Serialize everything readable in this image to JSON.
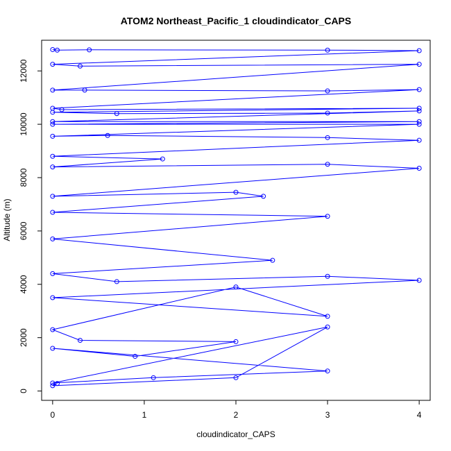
{
  "chart_data": {
    "type": "line",
    "title": "ATOM2 Northeast_Pacific_1 cloudindicator_CAPS",
    "xlabel": "cloudindicator_CAPS",
    "ylabel": "Altitude (m)",
    "xlim": [
      -0.12,
      4.12
    ],
    "ylim": [
      -350,
      13150
    ],
    "x_ticks": [
      0,
      1,
      2,
      3,
      4
    ],
    "y_ticks": [
      0,
      2000,
      4000,
      6000,
      8000,
      10000,
      12000
    ],
    "grid": false,
    "legend": "none",
    "colors": {
      "series": "#0000ff",
      "axes": "#000000",
      "background": "#ffffff"
    },
    "series": [
      {
        "x": [
          0,
          0.05,
          0.4,
          3,
          4,
          0,
          0.3,
          4,
          0,
          0.35,
          3,
          4,
          0,
          0.1,
          4,
          0,
          0.7,
          3,
          4,
          0,
          4,
          0,
          4,
          0,
          0.6,
          3,
          4,
          0,
          1.2,
          0,
          3,
          4,
          0,
          2,
          2.3,
          0,
          3,
          0,
          2.4,
          0,
          0.7,
          3,
          4,
          0,
          3,
          2,
          0,
          0.3,
          2,
          0.9,
          0,
          3,
          1.1,
          0,
          3,
          2,
          0,
          0.05
        ],
        "y": [
          12800,
          12780,
          12790,
          12780,
          12760,
          12250,
          12180,
          12250,
          11280,
          11280,
          11250,
          11300,
          10600,
          10550,
          10600,
          10450,
          10400,
          10420,
          10500,
          10100,
          10100,
          10000,
          10000,
          9550,
          9580,
          9500,
          9400,
          8800,
          8700,
          8400,
          8500,
          8350,
          7300,
          7450,
          7300,
          6700,
          6550,
          5700,
          4900,
          4400,
          4100,
          4300,
          4150,
          3500,
          2800,
          3900,
          2300,
          1900,
          1850,
          1300,
          1600,
          750,
          500,
          300,
          2400,
          500,
          200,
          280
        ]
      }
    ]
  }
}
